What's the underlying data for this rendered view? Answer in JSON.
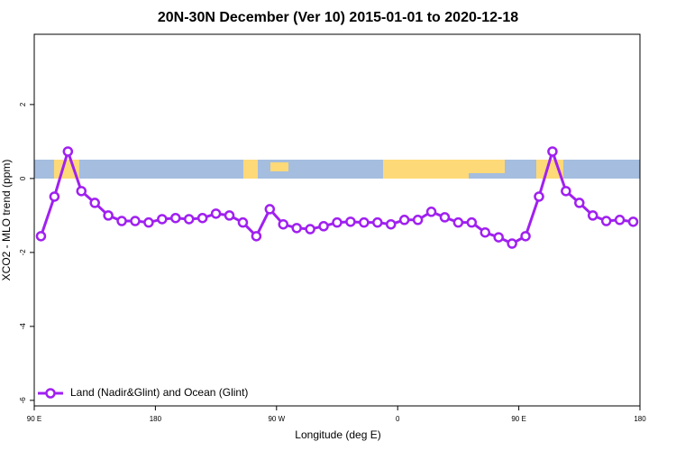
{
  "chart_data": {
    "type": "line",
    "title": "20N-30N December (Ver 10)   2015-01-01 to 2020-12-18",
    "x_label": "Longitude (deg E)",
    "y_label": "XCO2 - MLO trend (ppm)",
    "x": [
      95,
      105,
      115,
      125,
      135,
      145,
      155,
      165,
      175,
      185,
      195,
      205,
      215,
      225,
      235,
      245,
      255,
      265,
      275,
      285,
      295,
      305,
      315,
      325,
      335,
      345,
      355,
      365,
      375,
      385,
      395,
      405,
      415,
      425,
      435,
      445,
      455,
      465,
      475,
      485,
      495,
      505,
      515,
      525,
      535
    ],
    "series": [
      {
        "name": "Land (Nadir&Glint) and Ocean (Glint)",
        "color": "#a020f0",
        "values": [
          -1.56,
          -0.49,
          0.73,
          -0.34,
          -0.66,
          -1.0,
          -1.15,
          -1.15,
          -1.19,
          -1.1,
          -1.07,
          -1.1,
          -1.07,
          -0.95,
          -1.0,
          -1.19,
          -1.56,
          -0.83,
          -1.24,
          -1.34,
          -1.37,
          -1.29,
          -1.19,
          -1.17,
          -1.19,
          -1.19,
          -1.24,
          -1.12,
          -1.12,
          -0.9,
          -1.05,
          -1.19,
          -1.19,
          -1.46,
          -1.59,
          -1.76,
          -1.56,
          -0.49,
          0.73,
          -0.34,
          -0.66,
          -1.0,
          -1.15,
          -1.12,
          -1.17
        ]
      }
    ],
    "xlim": [
      90,
      540
    ],
    "xticks": [
      {
        "value": 90,
        "label": "90 E"
      },
      180,
      {
        "value": 270,
        "label": "90 W"
      },
      {
        "value": 360,
        "label": "0"
      },
      {
        "value": 450,
        "label": "90 E"
      },
      {
        "value": 540,
        "label": "180"
      }
    ],
    "ylim": [
      -6.15,
      3.9
    ],
    "yticks": [
      -6,
      -4,
      -2,
      0,
      2
    ],
    "legend": "bottom-left"
  }
}
